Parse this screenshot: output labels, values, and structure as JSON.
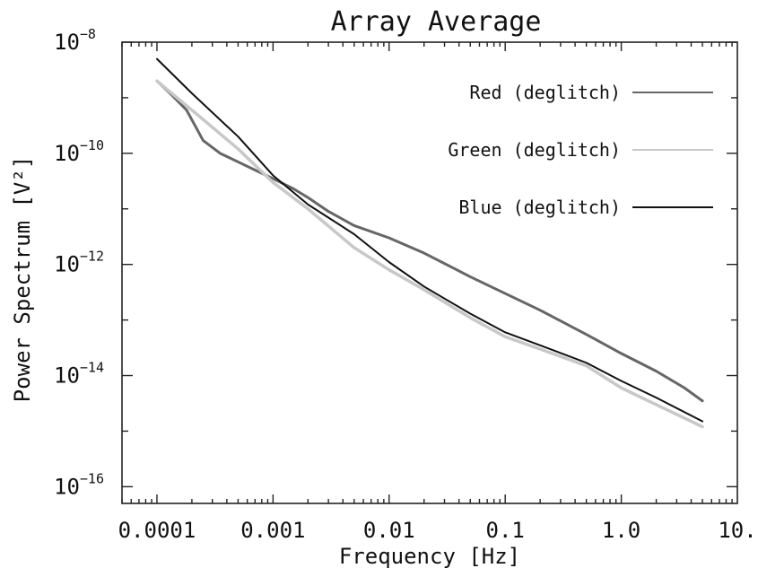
{
  "chart_data": {
    "type": "line",
    "title": "Array Average",
    "xlabel": "Frequency [Hz]",
    "ylabel": "Power Spectrum [V²]",
    "xscale": "log",
    "yscale": "log",
    "xlim": [
      5e-05,
      10
    ],
    "ylim": [
      5e-17,
      1e-08
    ],
    "x_tick_labels": [
      {
        "value": 0.0001,
        "label": "0.0001"
      },
      {
        "value": 0.001,
        "label": "0.001"
      },
      {
        "value": 0.01,
        "label": "0.01"
      },
      {
        "value": 0.1,
        "label": "0.1"
      },
      {
        "value": 1,
        "label": "1.0"
      },
      {
        "value": 10,
        "label": "10."
      }
    ],
    "y_tick_labels": [
      {
        "value": 1e-08,
        "base": "10",
        "exponent": "−8"
      },
      {
        "value": 1e-10,
        "base": "10",
        "exponent": "−10"
      },
      {
        "value": 1e-12,
        "base": "10",
        "exponent": "−12"
      },
      {
        "value": 1e-14,
        "base": "10",
        "exponent": "−14"
      },
      {
        "value": 1e-16,
        "base": "10",
        "exponent": "−16"
      }
    ],
    "grid": false,
    "legend_position": "top-right",
    "series": [
      {
        "name": "Red (deglitch)",
        "color": "#666666",
        "points": [
          {
            "x": 0.0001,
            "y": 2e-09
          },
          {
            "x": 0.00013,
            "y": 1.2e-09
          },
          {
            "x": 0.00018,
            "y": 6e-10
          },
          {
            "x": 0.00025,
            "y": 1.7e-10
          },
          {
            "x": 0.00035,
            "y": 1e-10
          },
          {
            "x": 0.0005,
            "y": 7e-11
          },
          {
            "x": 0.0007,
            "y": 5e-11
          },
          {
            "x": 0.001,
            "y": 3.5e-11
          },
          {
            "x": 0.0015,
            "y": 2.3e-11
          },
          {
            "x": 0.002,
            "y": 1.6e-11
          },
          {
            "x": 0.003,
            "y": 9e-12
          },
          {
            "x": 0.005,
            "y": 5e-12
          },
          {
            "x": 0.01,
            "y": 3e-12
          },
          {
            "x": 0.02,
            "y": 1.6e-12
          },
          {
            "x": 0.05,
            "y": 6e-13
          },
          {
            "x": 0.1,
            "y": 3e-13
          },
          {
            "x": 0.2,
            "y": 1.5e-13
          },
          {
            "x": 0.5,
            "y": 5.5e-14
          },
          {
            "x": 1,
            "y": 2.5e-14
          },
          {
            "x": 2,
            "y": 1.2e-14
          },
          {
            "x": 3.5,
            "y": 6e-15
          },
          {
            "x": 5,
            "y": 3.5e-15
          }
        ]
      },
      {
        "name": "Green (deglitch)",
        "color": "#c8c8c8",
        "points": [
          {
            "x": 0.0001,
            "y": 2e-09
          },
          {
            "x": 0.0002,
            "y": 6e-10
          },
          {
            "x": 0.0005,
            "y": 1.2e-10
          },
          {
            "x": 0.001,
            "y": 3e-11
          },
          {
            "x": 0.002,
            "y": 1e-11
          },
          {
            "x": 0.005,
            "y": 2e-12
          },
          {
            "x": 0.01,
            "y": 8e-13
          },
          {
            "x": 0.02,
            "y": 3.5e-13
          },
          {
            "x": 0.05,
            "y": 1.1e-13
          },
          {
            "x": 0.1,
            "y": 5e-14
          },
          {
            "x": 0.2,
            "y": 3e-14
          },
          {
            "x": 0.5,
            "y": 1.5e-14
          },
          {
            "x": 1,
            "y": 6e-15
          },
          {
            "x": 2,
            "y": 3e-15
          },
          {
            "x": 5,
            "y": 1.2e-15
          }
        ]
      },
      {
        "name": "Blue (deglitch)",
        "color": "#111111",
        "points": [
          {
            "x": 0.0001,
            "y": 5e-09
          },
          {
            "x": 0.0002,
            "y": 1.2e-09
          },
          {
            "x": 0.0005,
            "y": 2e-10
          },
          {
            "x": 0.001,
            "y": 4e-11
          },
          {
            "x": 0.002,
            "y": 1.2e-11
          },
          {
            "x": 0.005,
            "y": 3.5e-12
          },
          {
            "x": 0.01,
            "y": 1.1e-12
          },
          {
            "x": 0.02,
            "y": 4e-13
          },
          {
            "x": 0.05,
            "y": 1.3e-13
          },
          {
            "x": 0.1,
            "y": 6e-14
          },
          {
            "x": 0.2,
            "y": 3.5e-14
          },
          {
            "x": 0.5,
            "y": 1.7e-14
          },
          {
            "x": 1,
            "y": 8e-15
          },
          {
            "x": 2,
            "y": 4e-15
          },
          {
            "x": 5,
            "y": 1.5e-15
          }
        ]
      }
    ]
  }
}
